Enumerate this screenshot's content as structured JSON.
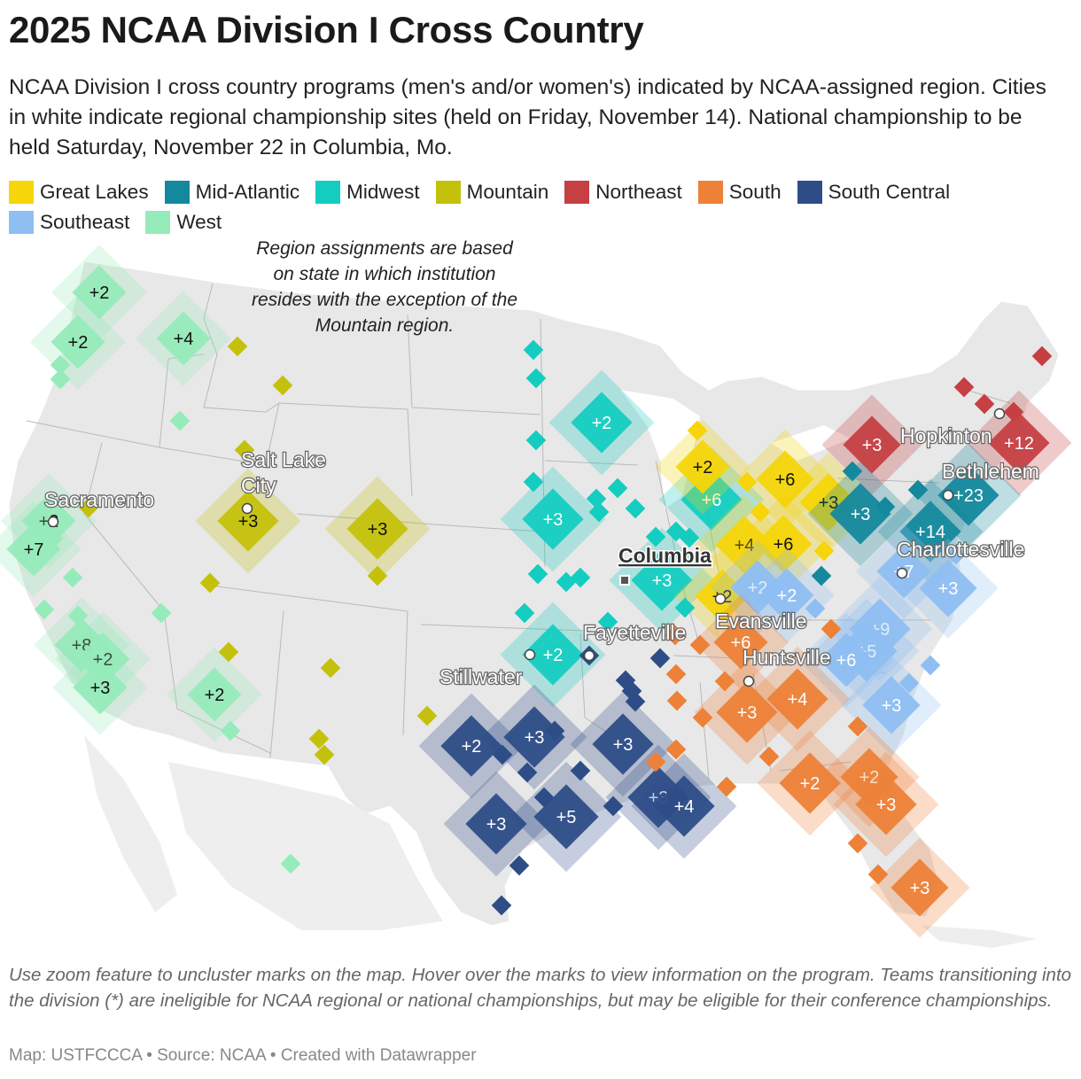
{
  "title": "2025 NCAA Division I Cross Country",
  "subtitle": "NCAA Division I cross country programs (men's and/or women's) indicated by NCAA-assigned region. Cities in white indicate regional championship sites (held on Friday, November 14). National championship to be held Saturday, November 22 in Columbia, Mo.",
  "legend": [
    {
      "name": "Great Lakes",
      "color": "#f6d50a"
    },
    {
      "name": "Mid-Atlantic",
      "color": "#14899d"
    },
    {
      "name": "Midwest",
      "color": "#14cdc0"
    },
    {
      "name": "Mountain",
      "color": "#c4c10d"
    },
    {
      "name": "Northeast",
      "color": "#c53f43"
    },
    {
      "name": "South",
      "color": "#ed8138"
    },
    {
      "name": "South Central",
      "color": "#2e4d87"
    },
    {
      "name": "Southeast",
      "color": "#8ebef2"
    },
    {
      "name": "West",
      "color": "#96ebbb"
    }
  ],
  "note": "Region assignments are based on state in which institution resides with the exception of the Mountain region.",
  "cities": [
    {
      "name": "Salt Lake City",
      "type": "regional"
    },
    {
      "name": "Sacramento",
      "type": "regional"
    },
    {
      "name": "Stillwater",
      "type": "regional"
    },
    {
      "name": "Fayetteville",
      "type": "regional"
    },
    {
      "name": "Evansville",
      "type": "regional"
    },
    {
      "name": "Huntsville",
      "type": "regional"
    },
    {
      "name": "Charlottesville",
      "type": "regional"
    },
    {
      "name": "Bethlehem",
      "type": "regional"
    },
    {
      "name": "Hopkinton",
      "type": "regional"
    },
    {
      "name": "Columbia",
      "type": "national"
    }
  ],
  "clusters": [
    {
      "region": "West",
      "label": "+2"
    },
    {
      "region": "West",
      "label": "+2"
    },
    {
      "region": "West",
      "label": "+4"
    },
    {
      "region": "West",
      "label": "+2"
    },
    {
      "region": "West",
      "label": "+7"
    },
    {
      "region": "West",
      "label": "+8"
    },
    {
      "region": "West",
      "label": "+2"
    },
    {
      "region": "West",
      "label": "+3"
    },
    {
      "region": "West",
      "label": "+2"
    },
    {
      "region": "Mountain",
      "label": "+3"
    },
    {
      "region": "Mountain",
      "label": "+3"
    },
    {
      "region": "Midwest",
      "label": "+2"
    },
    {
      "region": "Midwest",
      "label": "+3"
    },
    {
      "region": "Midwest",
      "label": "+6"
    },
    {
      "region": "Midwest",
      "label": "+3"
    },
    {
      "region": "Midwest",
      "label": "+2"
    },
    {
      "region": "Great Lakes",
      "label": "+2"
    },
    {
      "region": "Great Lakes",
      "label": "+6"
    },
    {
      "region": "Great Lakes",
      "label": "+3"
    },
    {
      "region": "Great Lakes",
      "label": "+4"
    },
    {
      "region": "Great Lakes",
      "label": "+6"
    },
    {
      "region": "Great Lakes",
      "label": "+2"
    },
    {
      "region": "Northeast",
      "label": "+3"
    },
    {
      "region": "Northeast",
      "label": "+12"
    },
    {
      "region": "Mid-Atlantic",
      "label": "+3"
    },
    {
      "region": "Mid-Atlantic",
      "label": "+23"
    },
    {
      "region": "Mid-Atlantic",
      "label": "+14"
    },
    {
      "region": "Southeast",
      "label": "+7"
    },
    {
      "region": "Southeast",
      "label": "+3"
    },
    {
      "region": "Southeast",
      "label": "+2"
    },
    {
      "region": "Southeast",
      "label": "+2"
    },
    {
      "region": "Southeast",
      "label": "+9"
    },
    {
      "region": "Southeast",
      "label": "+5"
    },
    {
      "region": "Southeast",
      "label": "+6"
    },
    {
      "region": "Southeast",
      "label": "+3"
    },
    {
      "region": "South",
      "label": "+6"
    },
    {
      "region": "South",
      "label": "+3"
    },
    {
      "region": "South",
      "label": "+4"
    },
    {
      "region": "South",
      "label": "+2"
    },
    {
      "region": "South",
      "label": "+2"
    },
    {
      "region": "South",
      "label": "+3"
    },
    {
      "region": "South",
      "label": "+3"
    },
    {
      "region": "South Central",
      "label": "+2"
    },
    {
      "region": "South Central",
      "label": "+3"
    },
    {
      "region": "South Central",
      "label": "+3"
    },
    {
      "region": "South Central",
      "label": "+3"
    },
    {
      "region": "South Central",
      "label": "+5"
    },
    {
      "region": "South Central",
      "label": "+3"
    },
    {
      "region": "South Central",
      "label": "+4"
    }
  ],
  "footnote": "Use zoom feature to uncluster marks on the map. Hover over the marks to view information on the program. Teams transitioning into the division (*) are ineligible for NCAA regional or national championships, but may be eligible for their conference championships.",
  "credit": "Map: USTFCCCA • Source: NCAA • Created with Datawrapper"
}
